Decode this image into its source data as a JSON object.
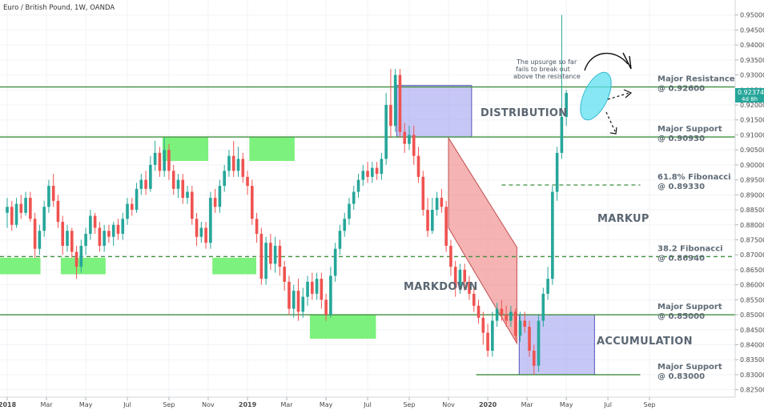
{
  "chart_data": {
    "type": "candlestick",
    "title": "Euro / British Pound, 1W, OANDA",
    "price_tag": "0.92374",
    "price_tag_sub": "4d 8h",
    "yaxis": {
      "ylim": [
        0.8225,
        0.955
      ],
      "ticks": [
        "0.82500",
        "0.83000",
        "0.83500",
        "0.84000",
        "0.84500",
        "0.85000",
        "0.85500",
        "0.86000",
        "0.86500",
        "0.87000",
        "0.87500",
        "0.88000",
        "0.88500",
        "0.89000",
        "0.89500",
        "0.90000",
        "0.90500",
        "0.91000",
        "0.91500",
        "0.92000",
        "0.92500",
        "0.93000",
        "0.93500",
        "0.94000",
        "0.94500",
        "0.95000"
      ]
    },
    "xaxis": {
      "ticks": [
        {
          "label": "2018",
          "week": 0,
          "bold": true
        },
        {
          "label": "Mar",
          "week": 8.5
        },
        {
          "label": "May",
          "week": 17
        },
        {
          "label": "Jul",
          "week": 26
        },
        {
          "label": "Sep",
          "week": 35
        },
        {
          "label": "Nov",
          "week": 43.5
        },
        {
          "label": "2019",
          "week": 52,
          "bold": true
        },
        {
          "label": "Mar",
          "week": 60.5
        },
        {
          "label": "May",
          "week": 69
        },
        {
          "label": "Jul",
          "week": 78
        },
        {
          "label": "Sep",
          "week": 87
        },
        {
          "label": "Nov",
          "week": 95.5
        },
        {
          "label": "2020",
          "week": 104,
          "bold": true
        },
        {
          "label": "Mar",
          "week": 112.5
        },
        {
          "label": "May",
          "week": 121
        },
        {
          "label": "Jul",
          "week": 130
        },
        {
          "label": "Sep",
          "week": 139
        }
      ]
    },
    "candles": [
      [
        0.884,
        0.886,
        0.879,
        0.889
      ],
      [
        0.886,
        0.88,
        0.878,
        0.888
      ],
      [
        0.88,
        0.887,
        0.879,
        0.889
      ],
      [
        0.887,
        0.884,
        0.882,
        0.89
      ],
      [
        0.884,
        0.889,
        0.883,
        0.891
      ],
      [
        0.889,
        0.882,
        0.881,
        0.891
      ],
      [
        0.882,
        0.872,
        0.869,
        0.884
      ],
      [
        0.872,
        0.878,
        0.87,
        0.88
      ],
      [
        0.878,
        0.886,
        0.876,
        0.888
      ],
      [
        0.886,
        0.893,
        0.884,
        0.895
      ],
      [
        0.893,
        0.888,
        0.886,
        0.897
      ],
      [
        0.888,
        0.881,
        0.879,
        0.89
      ],
      [
        0.881,
        0.873,
        0.87,
        0.883
      ],
      [
        0.873,
        0.878,
        0.871,
        0.88
      ],
      [
        0.878,
        0.871,
        0.869,
        0.879
      ],
      [
        0.871,
        0.866,
        0.862,
        0.873
      ],
      [
        0.866,
        0.873,
        0.864,
        0.875
      ],
      [
        0.873,
        0.877,
        0.87,
        0.879
      ],
      [
        0.877,
        0.883,
        0.875,
        0.885
      ],
      [
        0.883,
        0.879,
        0.877,
        0.884
      ],
      [
        0.879,
        0.873,
        0.871,
        0.881
      ],
      [
        0.873,
        0.878,
        0.871,
        0.88
      ],
      [
        0.878,
        0.876,
        0.874,
        0.88
      ],
      [
        0.876,
        0.88,
        0.873,
        0.881
      ],
      [
        0.88,
        0.877,
        0.875,
        0.882
      ],
      [
        0.877,
        0.882,
        0.875,
        0.884
      ],
      [
        0.882,
        0.887,
        0.88,
        0.889
      ],
      [
        0.887,
        0.885,
        0.883,
        0.889
      ],
      [
        0.885,
        0.892,
        0.884,
        0.894
      ],
      [
        0.892,
        0.895,
        0.89,
        0.897
      ],
      [
        0.895,
        0.892,
        0.89,
        0.898
      ],
      [
        0.892,
        0.9,
        0.891,
        0.903
      ],
      [
        0.9,
        0.904,
        0.898,
        0.908
      ],
      [
        0.904,
        0.898,
        0.896,
        0.906
      ],
      [
        0.898,
        0.905,
        0.896,
        0.909
      ],
      [
        0.905,
        0.898,
        0.895,
        0.907
      ],
      [
        0.898,
        0.892,
        0.89,
        0.9
      ],
      [
        0.892,
        0.895,
        0.889,
        0.897
      ],
      [
        0.895,
        0.889,
        0.887,
        0.897
      ],
      [
        0.889,
        0.891,
        0.887,
        0.893
      ],
      [
        0.891,
        0.882,
        0.88,
        0.893
      ],
      [
        0.882,
        0.876,
        0.873,
        0.884
      ],
      [
        0.876,
        0.879,
        0.874,
        0.881
      ],
      [
        0.879,
        0.874,
        0.872,
        0.881
      ],
      [
        0.874,
        0.889,
        0.872,
        0.891
      ],
      [
        0.889,
        0.886,
        0.884,
        0.892
      ],
      [
        0.886,
        0.893,
        0.884,
        0.895
      ],
      [
        0.893,
        0.898,
        0.891,
        0.9
      ],
      [
        0.898,
        0.903,
        0.896,
        0.905
      ],
      [
        0.903,
        0.898,
        0.896,
        0.908
      ],
      [
        0.898,
        0.902,
        0.896,
        0.906
      ],
      [
        0.902,
        0.896,
        0.894,
        0.904
      ],
      [
        0.896,
        0.893,
        0.89,
        0.898
      ],
      [
        0.893,
        0.882,
        0.88,
        0.895
      ],
      [
        0.882,
        0.877,
        0.874,
        0.884
      ],
      [
        0.877,
        0.862,
        0.86,
        0.879
      ],
      [
        0.862,
        0.874,
        0.86,
        0.876
      ],
      [
        0.874,
        0.867,
        0.865,
        0.877
      ],
      [
        0.867,
        0.873,
        0.864,
        0.876
      ],
      [
        0.873,
        0.866,
        0.863,
        0.875
      ],
      [
        0.866,
        0.861,
        0.858,
        0.868
      ],
      [
        0.861,
        0.852,
        0.85,
        0.863
      ],
      [
        0.852,
        0.858,
        0.849,
        0.86
      ],
      [
        0.858,
        0.851,
        0.848,
        0.862
      ],
      [
        0.851,
        0.856,
        0.849,
        0.859
      ],
      [
        0.856,
        0.861,
        0.853,
        0.863
      ],
      [
        0.861,
        0.857,
        0.855,
        0.864
      ],
      [
        0.857,
        0.862,
        0.855,
        0.864
      ],
      [
        0.862,
        0.855,
        0.852,
        0.864
      ],
      [
        0.855,
        0.85,
        0.848,
        0.857
      ],
      [
        0.85,
        0.863,
        0.849,
        0.866
      ],
      [
        0.863,
        0.872,
        0.861,
        0.874
      ],
      [
        0.872,
        0.878,
        0.87,
        0.88
      ],
      [
        0.878,
        0.882,
        0.876,
        0.884
      ],
      [
        0.882,
        0.887,
        0.88,
        0.889
      ],
      [
        0.887,
        0.891,
        0.885,
        0.893
      ],
      [
        0.891,
        0.895,
        0.889,
        0.897
      ],
      [
        0.895,
        0.898,
        0.893,
        0.9
      ],
      [
        0.898,
        0.896,
        0.894,
        0.901
      ],
      [
        0.896,
        0.899,
        0.894,
        0.901
      ],
      [
        0.899,
        0.897,
        0.895,
        0.901
      ],
      [
        0.897,
        0.902,
        0.895,
        0.904
      ],
      [
        0.902,
        0.92,
        0.9,
        0.924
      ],
      [
        0.92,
        0.913,
        0.909,
        0.932
      ],
      [
        0.913,
        0.93,
        0.911,
        0.932
      ],
      [
        0.93,
        0.911,
        0.909,
        0.932
      ],
      [
        0.911,
        0.907,
        0.904,
        0.914
      ],
      [
        0.907,
        0.91,
        0.905,
        0.913
      ],
      [
        0.91,
        0.903,
        0.9,
        0.913
      ],
      [
        0.903,
        0.896,
        0.894,
        0.906
      ],
      [
        0.896,
        0.885,
        0.883,
        0.898
      ],
      [
        0.885,
        0.878,
        0.876,
        0.889
      ],
      [
        0.878,
        0.885,
        0.877,
        0.889
      ],
      [
        0.885,
        0.889,
        0.883,
        0.891
      ],
      [
        0.889,
        0.886,
        0.884,
        0.892
      ],
      [
        0.886,
        0.873,
        0.871,
        0.888
      ],
      [
        0.873,
        0.866,
        0.863,
        0.875
      ],
      [
        0.866,
        0.859,
        0.856,
        0.868
      ],
      [
        0.859,
        0.865,
        0.857,
        0.867
      ],
      [
        0.865,
        0.861,
        0.858,
        0.867
      ],
      [
        0.861,
        0.857,
        0.855,
        0.863
      ],
      [
        0.857,
        0.853,
        0.851,
        0.859
      ],
      [
        0.853,
        0.849,
        0.847,
        0.855
      ],
      [
        0.849,
        0.844,
        0.84,
        0.851
      ],
      [
        0.844,
        0.838,
        0.836,
        0.847
      ],
      [
        0.838,
        0.848,
        0.836,
        0.851
      ],
      [
        0.848,
        0.852,
        0.846,
        0.854
      ],
      [
        0.852,
        0.85,
        0.848,
        0.855
      ],
      [
        0.85,
        0.848,
        0.846,
        0.853
      ],
      [
        0.848,
        0.851,
        0.846,
        0.853
      ],
      [
        0.851,
        0.843,
        0.841,
        0.852
      ],
      [
        0.843,
        0.848,
        0.841,
        0.851
      ],
      [
        0.848,
        0.846,
        0.844,
        0.851
      ],
      [
        0.846,
        0.838,
        0.836,
        0.848
      ],
      [
        0.838,
        0.833,
        0.83,
        0.84
      ],
      [
        0.833,
        0.848,
        0.831,
        0.85
      ],
      [
        0.848,
        0.857,
        0.846,
        0.859
      ],
      [
        0.857,
        0.862,
        0.855,
        0.866
      ],
      [
        0.862,
        0.891,
        0.86,
        0.893
      ],
      [
        0.891,
        0.904,
        0.888,
        0.906
      ],
      [
        0.904,
        0.916,
        0.902,
        0.95
      ],
      [
        0.916,
        0.924,
        0.913,
        0.925
      ]
    ],
    "levels": [
      {
        "price": 0.926,
        "style": "solid",
        "color": "#3f8f3f",
        "label1": "Major Resistance",
        "label2": "@ 0.92600"
      },
      {
        "price": 0.9093,
        "style": "solid",
        "color": "#3f8f3f",
        "label1": "Major Support",
        "label2": "@ 0.90930"
      },
      {
        "price": 0.8933,
        "style": "dashed",
        "color": "#3f8f3f",
        "label1": "61.8% Fibonacci",
        "label2": "@ 0.89330"
      },
      {
        "price": 0.8694,
        "style": "dashed",
        "color": "#3f8f3f",
        "label1": "38.2 Fibonacci",
        "label2": "@ 0.86940"
      },
      {
        "price": 0.85,
        "style": "solid",
        "color": "#3f8f3f",
        "label1": "Major Support",
        "label2": "@ 0.85000"
      },
      {
        "price": 0.83,
        "style": "solid",
        "color": "#3f8f3f",
        "label1": "Major Support",
        "label2": "@ 0.83000"
      }
    ],
    "phases": [
      "DISTRIBUTION",
      "MARKDOWN",
      "MARKUP",
      "ACCUMULATION"
    ],
    "annotation": [
      "The upsurge so far",
      "fails to break out",
      "above the resistance"
    ],
    "colors": {
      "up": "#26a69a",
      "down": "#ef5350",
      "zone_green": "#66ee66",
      "zone_blue": "#9999ee",
      "zone_red": "#f08080",
      "ellipse": "#5fe0f0",
      "tag": "#26a69a"
    }
  }
}
